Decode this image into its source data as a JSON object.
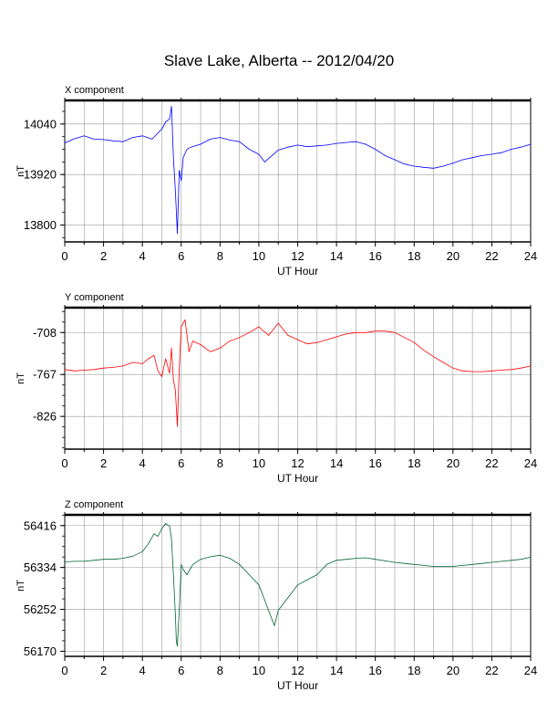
{
  "page": {
    "title": "Slave Lake, Alberta -- 2012/04/20"
  },
  "chart_data": [
    {
      "type": "line",
      "title": "X component",
      "xlabel": "UT Hour",
      "ylabel": "nT",
      "color": "#0000ff",
      "xlim": [
        0,
        24
      ],
      "ylim": [
        13760,
        14096
      ],
      "xticks": [
        "0",
        "2",
        "4",
        "6",
        "8",
        "10",
        "12",
        "14",
        "16",
        "18",
        "20",
        "22",
        "24"
      ],
      "yticks": [
        "14040",
        "13920",
        "13800"
      ],
      "ytick_values": [
        14040,
        13920,
        13800
      ],
      "grid": true,
      "series": [
        {
          "x": [
            0,
            0.5,
            1,
            1.5,
            2,
            2.5,
            3,
            3.5,
            4,
            4.5,
            5,
            5.2,
            5.4,
            5.5,
            5.6,
            5.7,
            5.8,
            5.9,
            6.0,
            6.1,
            6.3,
            6.5,
            7,
            7.5,
            8,
            8.5,
            9,
            9.5,
            10,
            10.3,
            10.6,
            11,
            11.5,
            12,
            12.5,
            13,
            13.5,
            14,
            14.5,
            15,
            15.5,
            16,
            16.5,
            17,
            17.5,
            18,
            18.5,
            19,
            19.5,
            20,
            20.5,
            21,
            21.5,
            22,
            22.5,
            23,
            23.5,
            24
          ],
          "values": [
            13995,
            14005,
            14012,
            14004,
            14003,
            14000,
            13998,
            14008,
            14012,
            14004,
            14028,
            14045,
            14052,
            14082,
            13960,
            13880,
            13780,
            13930,
            13905,
            13960,
            13980,
            13985,
            13992,
            14004,
            14008,
            14002,
            13998,
            13980,
            13968,
            13950,
            13962,
            13978,
            13985,
            13990,
            13986,
            13988,
            13990,
            13994,
            13996,
            13998,
            13992,
            13980,
            13965,
            13955,
            13945,
            13940,
            13937,
            13935,
            13940,
            13947,
            13955,
            13960,
            13965,
            13968,
            13972,
            13980,
            13985,
            13992
          ]
        }
      ]
    },
    {
      "type": "line",
      "title": "Y component",
      "xlabel": "UT Hour",
      "ylabel": "nT",
      "color": "#ff0000",
      "xlim": [
        0,
        24
      ],
      "ylim": [
        -872,
        -673
      ],
      "xticks": [
        "0",
        "2",
        "4",
        "6",
        "8",
        "10",
        "12",
        "14",
        "16",
        "18",
        "20",
        "22",
        "24"
      ],
      "yticks": [
        "-708",
        "-767",
        "-826"
      ],
      "ytick_values": [
        -708,
        -767,
        -826
      ],
      "grid": true,
      "series": [
        {
          "x": [
            0,
            0.5,
            1,
            1.5,
            2,
            2.5,
            3,
            3.5,
            4,
            4.3,
            4.6,
            4.8,
            5.0,
            5.2,
            5.4,
            5.5,
            5.6,
            5.7,
            5.8,
            5.9,
            6.0,
            6.2,
            6.4,
            6.6,
            7,
            7.5,
            8,
            8.5,
            9,
            9.5,
            10,
            10.5,
            11,
            11.5,
            12,
            12.5,
            13,
            13.5,
            14,
            14.5,
            15,
            15.5,
            16,
            16.5,
            17,
            17.5,
            18,
            18.5,
            19,
            19.5,
            20,
            20.5,
            21,
            21.5,
            22,
            22.5,
            23,
            23.5,
            24
          ],
          "values": [
            -760,
            -762,
            -761,
            -760,
            -758,
            -757,
            -755,
            -750,
            -752,
            -745,
            -740,
            -762,
            -770,
            -745,
            -765,
            -730,
            -775,
            -790,
            -840,
            -760,
            -700,
            -690,
            -735,
            -720,
            -725,
            -735,
            -730,
            -720,
            -715,
            -708,
            -700,
            -712,
            -695,
            -712,
            -718,
            -724,
            -722,
            -718,
            -714,
            -710,
            -708,
            -708,
            -706,
            -706,
            -708,
            -715,
            -722,
            -733,
            -742,
            -750,
            -758,
            -762,
            -763,
            -763,
            -762,
            -761,
            -760,
            -758,
            -755
          ]
        }
      ]
    },
    {
      "type": "line",
      "title": "Z component",
      "xlabel": "UT Hour",
      "ylabel": "nT",
      "color": "#006633",
      "xlim": [
        0,
        24
      ],
      "ylim": [
        56160,
        56437
      ],
      "xticks": [
        "0",
        "2",
        "4",
        "6",
        "8",
        "10",
        "12",
        "14",
        "16",
        "18",
        "20",
        "22",
        "24"
      ],
      "yticks": [
        "56416",
        "56334",
        "56252",
        "56170"
      ],
      "ytick_values": [
        56416,
        56334,
        56252,
        56170
      ],
      "grid": true,
      "series": [
        {
          "x": [
            0,
            0.5,
            1,
            1.5,
            2,
            2.5,
            3,
            3.5,
            4,
            4.3,
            4.6,
            4.8,
            5.0,
            5.2,
            5.4,
            5.5,
            5.6,
            5.7,
            5.75,
            5.8,
            5.9,
            6.0,
            6.1,
            6.3,
            6.6,
            7,
            7.5,
            8,
            8.5,
            9,
            9.5,
            10,
            10.3,
            10.6,
            10.8,
            11,
            11.5,
            12,
            12.5,
            13,
            13.5,
            14,
            14.5,
            15,
            15.5,
            16,
            16.5,
            17,
            17.5,
            18,
            18.5,
            19,
            19.5,
            20,
            20.5,
            21,
            21.5,
            22,
            22.5,
            23,
            23.5,
            24
          ],
          "values": [
            56345,
            56346,
            56346,
            56348,
            56350,
            56350,
            56352,
            56356,
            56365,
            56380,
            56400,
            56395,
            56410,
            56420,
            56415,
            56390,
            56320,
            56240,
            56190,
            56180,
            56250,
            56340,
            56330,
            56320,
            56340,
            56350,
            56355,
            56358,
            56352,
            56340,
            56320,
            56300,
            56270,
            56240,
            56220,
            56250,
            56275,
            56300,
            56310,
            56320,
            56340,
            56348,
            56350,
            56352,
            56353,
            56350,
            56347,
            56344,
            56342,
            56340,
            56338,
            56336,
            56336,
            56336,
            56338,
            56340,
            56342,
            56344,
            56346,
            56348,
            56350,
            56354
          ]
        }
      ]
    }
  ]
}
